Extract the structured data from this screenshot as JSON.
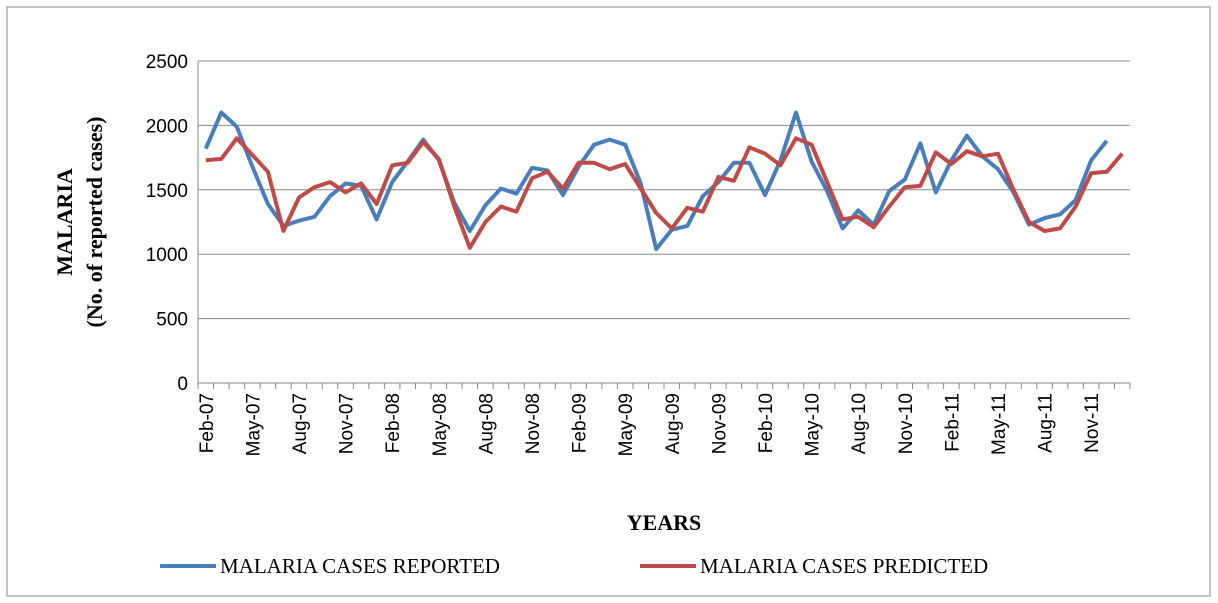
{
  "chart_data": {
    "type": "line",
    "y_label": [
      "MALARIA",
      "(No. of  reported cases)"
    ],
    "x_label": "YEARS",
    "categories": [
      "Feb-07",
      null,
      null,
      "May-07",
      null,
      null,
      "Aug-07",
      null,
      null,
      "Nov-07",
      null,
      null,
      "Feb-08",
      null,
      null,
      "May-08",
      null,
      null,
      "Aug-08",
      null,
      null,
      "Nov-08",
      null,
      null,
      "Feb-09",
      null,
      null,
      "May-09",
      null,
      null,
      "Aug-09",
      null,
      null,
      "Nov-09",
      null,
      null,
      "Feb-10",
      null,
      null,
      "May-10",
      null,
      null,
      "Aug-10",
      null,
      null,
      "Nov-10",
      null,
      null,
      "Feb-11",
      null,
      null,
      "May-11",
      null,
      null,
      "Aug-11",
      null,
      null,
      "Nov-11",
      null,
      null
    ],
    "series": [
      {
        "name": "MALARIA CASES REPORTED",
        "color": "#4a7ebb",
        "values": [
          1820,
          2100,
          1990,
          1680,
          1390,
          1220,
          1260,
          1290,
          1450,
          1550,
          1530,
          1270,
          1560,
          1720,
          1890,
          1730,
          1400,
          1180,
          1380,
          1510,
          1470,
          1670,
          1650,
          1460,
          1680,
          1850,
          1890,
          1850,
          1550,
          1040,
          1190,
          1220,
          1450,
          1560,
          1710,
          1710,
          1460,
          1730,
          2100,
          1720,
          1490,
          1200,
          1340,
          1230,
          1490,
          1580,
          1860,
          1480,
          1730,
          1920,
          1760,
          1660,
          1480,
          1230,
          1280,
          1310,
          1420,
          1730,
          1880,
          null
        ]
      },
      {
        "name": "MALARIA CASES PREDICTED",
        "color": "#be4b48",
        "values": [
          1730,
          1740,
          1900,
          1770,
          1640,
          1180,
          1440,
          1520,
          1560,
          1480,
          1550,
          1390,
          1690,
          1710,
          1870,
          1740,
          1370,
          1050,
          1250,
          1370,
          1330,
          1590,
          1640,
          1510,
          1710,
          1710,
          1660,
          1700,
          1510,
          1320,
          1200,
          1360,
          1330,
          1600,
          1570,
          1830,
          1780,
          1690,
          1900,
          1850,
          1560,
          1270,
          1290,
          1210,
          1370,
          1520,
          1530,
          1790,
          1700,
          1800,
          1760,
          1780,
          1500,
          1250,
          1180,
          1200,
          1370,
          1630,
          1640,
          1780
        ]
      }
    ],
    "ylim": [
      0,
      2500
    ],
    "yticks": [
      0,
      500,
      1000,
      1500,
      2000,
      2500
    ],
    "grid": true,
    "legend": "bottom"
  }
}
